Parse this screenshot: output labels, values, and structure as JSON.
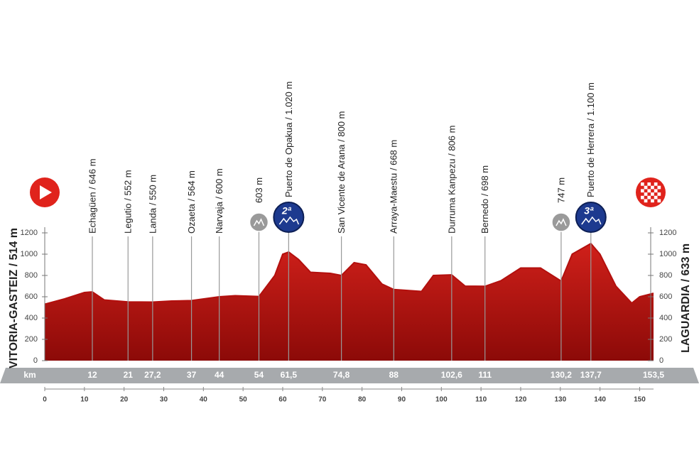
{
  "chart_data": {
    "type": "profile",
    "start": "VITORIA-GASTEIZ / 514 m",
    "finish": "LAGUARDIA / 633 m",
    "km_unit": "km",
    "xlim": [
      0,
      153.5
    ],
    "xticks": [
      0,
      10,
      20,
      30,
      40,
      50,
      60,
      70,
      80,
      90,
      100,
      110,
      120,
      130,
      140,
      150
    ],
    "ylim": [
      0,
      1200
    ],
    "yticks": [
      0,
      200,
      400,
      600,
      800,
      1000,
      1200
    ],
    "color": "#b3100e",
    "profile": {
      "x": [
        0,
        5,
        10,
        12,
        15,
        21,
        27.2,
        32,
        37,
        44,
        48,
        54,
        58,
        60,
        61.5,
        64,
        67,
        72,
        74.8,
        78,
        81,
        85,
        88,
        95,
        98,
        102.6,
        106,
        111,
        115,
        120,
        125,
        130.2,
        133,
        137.7,
        140,
        144,
        148,
        150,
        153.5
      ],
      "values": [
        530,
        580,
        640,
        646,
        570,
        552,
        550,
        560,
        564,
        600,
        610,
        603,
        800,
        1000,
        1020,
        950,
        830,
        820,
        800,
        920,
        900,
        720,
        668,
        650,
        800,
        806,
        700,
        698,
        750,
        870,
        870,
        747,
        1000,
        1100,
        1000,
        700,
        540,
        600,
        633
      ]
    },
    "points": {
      "x": [
        12,
        21,
        27.2,
        37,
        44,
        54,
        61.5,
        74.8,
        88,
        102.6,
        111,
        130.2,
        137.7,
        153.5
      ],
      "x_labels": [
        "12",
        "21",
        "27,2",
        "37",
        "44",
        "54",
        "61,5",
        "74,8",
        "88",
        "102,6",
        "111",
        "130,2",
        "137,7",
        "153,5"
      ],
      "elevations": [
        646,
        552,
        550,
        564,
        600,
        603,
        1020,
        800,
        668,
        806,
        698,
        747,
        1100,
        633
      ],
      "labels": [
        "Echagüen / 646 m",
        "Legutio / 552 m",
        "Landa / 550 m",
        "Ozaeta / 564 m",
        "Narvaja / 600 m",
        "603 m",
        "Puerto de Opakua / 1.020 m",
        "San Vicente de Arana / 800 m",
        "Arraya-Maestu / 668 m",
        "Durruma Kanpezu / 806 m",
        "Bernedo / 698 m",
        "747 m",
        "Puerto de Herrera / 1.100 m",
        null
      ]
    },
    "climbs": {
      "x": [
        61.5,
        137.7
      ],
      "labels": [
        "2ª",
        "3ª"
      ]
    },
    "sprints": {
      "x": [
        54,
        130.2
      ]
    }
  }
}
